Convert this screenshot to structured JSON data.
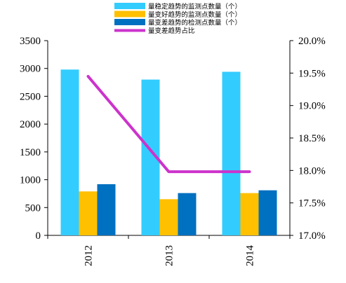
{
  "chart_data": {
    "type": "bar",
    "categories": [
      "2012",
      "2013",
      "2014"
    ],
    "series": [
      {
        "name": "量稳定趋势的监测点数量（个）",
        "values": [
          2980,
          2800,
          2940
        ],
        "color": "#33ccff",
        "axis": "left"
      },
      {
        "name": "量变好趋势的监测点数量（个）",
        "values": [
          790,
          650,
          760
        ],
        "color": "#ffc000",
        "axis": "left"
      },
      {
        "name": "量变差趋势的检测点数量（个）",
        "values": [
          920,
          760,
          810
        ],
        "color": "#0070c0",
        "axis": "left"
      },
      {
        "name": "量变差趋势占比",
        "type": "line",
        "values": [
          19.45,
          17.98,
          17.98
        ],
        "color": "#cc33cc",
        "axis": "right"
      }
    ],
    "ylim": [
      0,
      3500
    ],
    "yticks": [
      0,
      500,
      1000,
      1500,
      2000,
      2500,
      3000,
      3500
    ],
    "y2lim": [
      17.0,
      20.0
    ],
    "y2ticks": [
      "17.0%",
      "17.5%",
      "18.0%",
      "18.5%",
      "19.0%",
      "19.5%",
      "20.0%"
    ],
    "legend_position": "top",
    "grid": false
  }
}
